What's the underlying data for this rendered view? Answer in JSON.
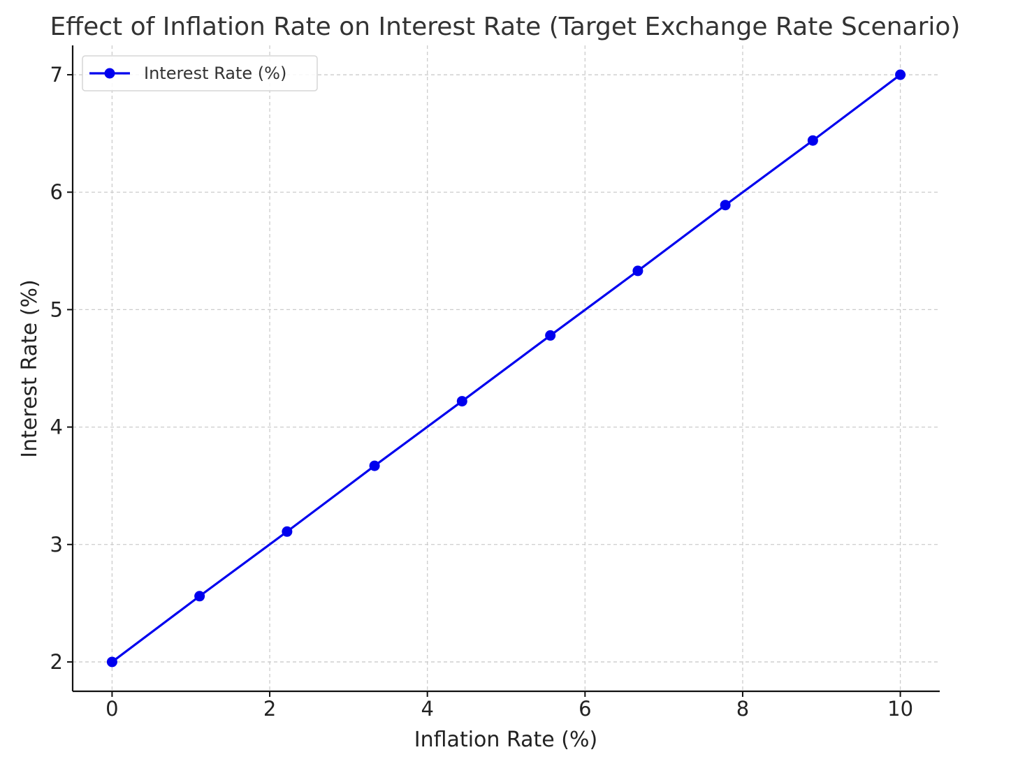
{
  "chart_data": {
    "type": "line",
    "title": "Effect of Inflation Rate on Interest Rate (Target Exchange Rate Scenario)",
    "xlabel": "Inflation Rate (%)",
    "ylabel": "Interest Rate (%)",
    "xlim": [
      -0.5,
      10.5
    ],
    "ylim": [
      1.75,
      7.25
    ],
    "xticks": [
      0,
      2,
      4,
      6,
      8,
      10
    ],
    "yticks": [
      2,
      3,
      4,
      5,
      6,
      7
    ],
    "xtick_labels": [
      "0",
      "2",
      "4",
      "6",
      "8",
      "10"
    ],
    "ytick_labels": [
      "2",
      "3",
      "4",
      "5",
      "6",
      "7"
    ],
    "grid": true,
    "legend_position": "top-left",
    "series": [
      {
        "name": "Interest Rate (%)",
        "color": "#0000ee",
        "marker": "circle",
        "x": [
          0,
          1.11,
          2.22,
          3.33,
          4.44,
          5.56,
          6.67,
          7.78,
          8.89,
          10
        ],
        "y": [
          2.0,
          2.56,
          3.11,
          3.67,
          4.22,
          4.78,
          5.33,
          5.89,
          6.44,
          7.0
        ]
      }
    ]
  }
}
